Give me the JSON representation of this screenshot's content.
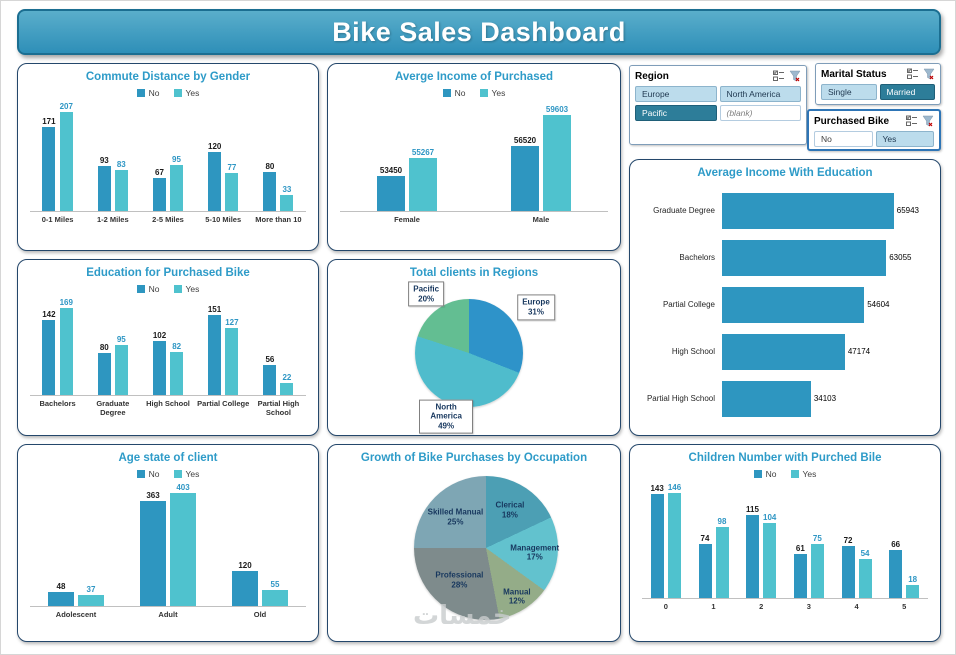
{
  "header": {
    "title": "Bike Sales Dashboard"
  },
  "watermark": "خمسات",
  "slicers": [
    {
      "id": "region",
      "title": "Region",
      "items": [
        {
          "label": "Europe",
          "variant": "light"
        },
        {
          "label": "North America",
          "variant": "light"
        },
        {
          "label": "Pacific",
          "variant": "dark"
        },
        {
          "label": "(blank)",
          "variant": "plain-italic"
        }
      ]
    },
    {
      "id": "marital",
      "title": "Marital Status",
      "items": [
        {
          "label": "Single",
          "variant": "light"
        },
        {
          "label": "Married",
          "variant": "dark"
        }
      ]
    },
    {
      "id": "purchased",
      "title": "Purchased Bike",
      "items": [
        {
          "label": "No",
          "variant": "plain"
        },
        {
          "label": "Yes",
          "variant": "light"
        }
      ]
    }
  ],
  "chart_data": [
    {
      "id": "commute",
      "type": "bar",
      "title": "Commute Distance by Gender",
      "categories": [
        "0-1 Miles",
        "1-2 Miles",
        "2-5 Miles",
        "5-10 Miles",
        "More than 10"
      ],
      "ylim": [
        0,
        225
      ],
      "series": [
        {
          "name": "No",
          "color": "#2E96C0",
          "label_color": "#1A1A1A",
          "values": [
            171,
            93,
            67,
            120,
            80
          ]
        },
        {
          "name": "Yes",
          "color": "#4FC2CE",
          "label_color": "#2E96C4",
          "values": [
            207,
            83,
            95,
            77,
            33
          ]
        }
      ]
    },
    {
      "id": "income",
      "type": "bar",
      "title": "Averge Income of Purchased",
      "categories": [
        "Female",
        "Male"
      ],
      "ylim": [
        50000,
        61000
      ],
      "series": [
        {
          "name": "No",
          "color": "#2E96C0",
          "label_color": "#1A1A1A",
          "values": [
            53450,
            56520
          ]
        },
        {
          "name": "Yes",
          "color": "#4FC2CE",
          "label_color": "#2E96C4",
          "values": [
            55267,
            59603
          ]
        }
      ]
    },
    {
      "id": "eduincome",
      "type": "hbar",
      "title": "Average Income With Education",
      "color": "#2E96C0",
      "ylim": [
        0,
        70000
      ],
      "categories": [
        "Graduate Degree",
        "Bachelors",
        "Partial College",
        "High School",
        "Partial High School"
      ],
      "values": [
        65943,
        63055,
        54604,
        47174,
        34103
      ]
    },
    {
      "id": "edupurchase",
      "type": "bar",
      "title": "Education for Purchased Bike",
      "categories": [
        "Bachelors",
        "Graduate Degree",
        "High School",
        "Partial College",
        "Partial High School"
      ],
      "ylim": [
        0,
        185
      ],
      "series": [
        {
          "name": "No",
          "color": "#2E96C0",
          "label_color": "#1A1A1A",
          "values": [
            142,
            80,
            102,
            151,
            56
          ]
        },
        {
          "name": "Yes",
          "color": "#4FC2CE",
          "label_color": "#2E96C4",
          "values": [
            169,
            95,
            82,
            127,
            22
          ]
        }
      ]
    },
    {
      "id": "regions",
      "type": "pie",
      "title": "Total clients in Regions",
      "label_style": "boxed",
      "slices": [
        {
          "name": "Europe",
          "pct": 31,
          "color": "#2E93C9",
          "ld": 1.5
        },
        {
          "name": "North America",
          "pct": 49,
          "color": "#4FBCCC",
          "ld": 1.25
        },
        {
          "name": "Pacific",
          "pct": 20,
          "color": "#63BE92",
          "ld": 1.35
        }
      ]
    },
    {
      "id": "age",
      "type": "bar",
      "title": "Age state of client",
      "categories": [
        "Adolescent",
        "Adult",
        "Old"
      ],
      "ylim": [
        0,
        430
      ],
      "series": [
        {
          "name": "No",
          "color": "#2E96C0",
          "label_color": "#1A1A1A",
          "values": [
            48,
            363,
            120
          ]
        },
        {
          "name": "Yes",
          "color": "#4FC2CE",
          "label_color": "#2E96C4",
          "values": [
            37,
            403,
            55
          ]
        }
      ]
    },
    {
      "id": "occupation",
      "type": "pie",
      "title": "Growth of Bike Purchases by Occupation",
      "label_style": "inside",
      "slices": [
        {
          "name": "Clerical",
          "pct": 18,
          "color": "#4C9FB4",
          "ld": 0.62
        },
        {
          "name": "Management",
          "pct": 17,
          "color": "#62C2CE",
          "ld": 0.68
        },
        {
          "name": "Manual",
          "pct": 12,
          "color": "#94AC88",
          "ld": 0.8
        },
        {
          "name": "Professional",
          "pct": 28,
          "color": "#7E8B8C",
          "ld": 0.58
        },
        {
          "name": "Skilled Manual",
          "pct": 25,
          "color": "#7EA6B4",
          "ld": 0.6
        }
      ]
    },
    {
      "id": "children",
      "type": "bar",
      "title": "Children Number with Purched Bile",
      "categories": [
        "0",
        "1",
        "2",
        "3",
        "4",
        "5"
      ],
      "ylim": [
        0,
        160
      ],
      "series": [
        {
          "name": "No",
          "color": "#2E96C0",
          "label_color": "#1A1A1A",
          "values": [
            143,
            74,
            115,
            61,
            72,
            66
          ]
        },
        {
          "name": "Yes",
          "color": "#4FC2CE",
          "label_color": "#2E96C4",
          "values": [
            146,
            98,
            104,
            75,
            54,
            18
          ]
        }
      ]
    }
  ]
}
